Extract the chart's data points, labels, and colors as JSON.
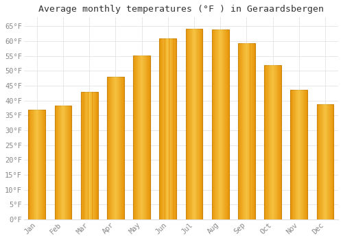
{
  "title": "Average monthly temperatures (°F ) in Geraardsbergen",
  "months": [
    "Jan",
    "Feb",
    "Mar",
    "Apr",
    "May",
    "Jun",
    "Jul",
    "Aug",
    "Sep",
    "Oct",
    "Nov",
    "Dec"
  ],
  "values": [
    37.0,
    38.3,
    43.0,
    48.0,
    55.2,
    61.0,
    64.2,
    63.9,
    59.2,
    52.0,
    43.7,
    38.8
  ],
  "bar_color_center": "#FFD966",
  "bar_color_edge": "#E8960A",
  "bar_border_color": "#C8820A",
  "background_color": "#FFFFFF",
  "grid_color": "#DDDDDD",
  "text_color": "#888888",
  "title_color": "#333333",
  "ylim": [
    0,
    68
  ],
  "yticks": [
    0,
    5,
    10,
    15,
    20,
    25,
    30,
    35,
    40,
    45,
    50,
    55,
    60,
    65
  ],
  "title_fontsize": 9.5,
  "tick_fontsize": 7.5,
  "font_family": "monospace",
  "bar_width": 0.65
}
